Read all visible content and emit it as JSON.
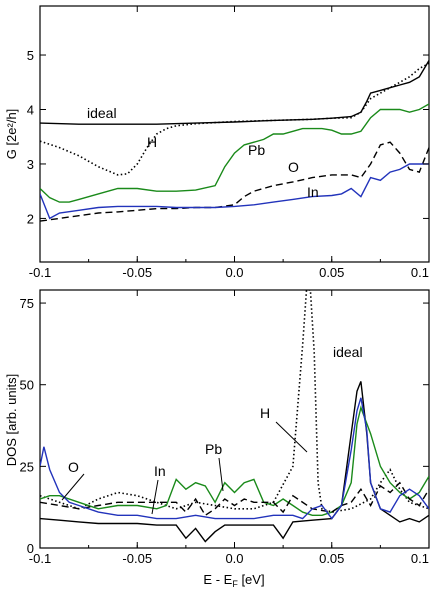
{
  "chart_data": [
    {
      "type": "line",
      "panel": "top",
      "ylabel": "G [2e²/h]",
      "xlim": [
        -0.1,
        0.1
      ],
      "ylim": [
        1.2,
        5.9
      ],
      "xticks": [
        -0.1,
        -0.05,
        0,
        0.05,
        0.1
      ],
      "xtick_labels": [
        "-0.1",
        "-0.05",
        "0.0",
        "0.05",
        "0.1"
      ],
      "yticks": [
        2,
        3,
        4,
        5
      ],
      "ytick_labels": [
        "2",
        "3",
        "4",
        "5"
      ],
      "series": [
        {
          "name": "ideal",
          "color": "#000000",
          "dash": "solid",
          "x": [
            -0.1,
            -0.08,
            -0.06,
            -0.04,
            -0.02,
            0.0,
            0.02,
            0.04,
            0.05,
            0.06,
            0.065,
            0.068,
            0.07,
            0.075,
            0.08,
            0.085,
            0.09,
            0.095,
            0.1
          ],
          "y": [
            3.75,
            3.73,
            3.73,
            3.73,
            3.75,
            3.77,
            3.8,
            3.82,
            3.84,
            3.87,
            3.95,
            4.15,
            4.3,
            4.35,
            4.4,
            4.45,
            4.5,
            4.6,
            4.9
          ]
        },
        {
          "name": "H",
          "color": "#000000",
          "dash": "dotted",
          "x": [
            -0.1,
            -0.09,
            -0.08,
            -0.07,
            -0.06,
            -0.055,
            -0.05,
            -0.045,
            -0.04,
            -0.035,
            -0.03,
            -0.02,
            -0.01,
            0.0,
            0.02,
            0.04,
            0.05,
            0.06,
            0.065,
            0.07,
            0.075,
            0.08,
            0.085,
            0.09,
            0.095,
            0.1
          ],
          "y": [
            3.42,
            3.3,
            3.15,
            2.95,
            2.8,
            2.82,
            3.0,
            3.3,
            3.55,
            3.65,
            3.7,
            3.74,
            3.76,
            3.78,
            3.8,
            3.82,
            3.84,
            3.85,
            3.95,
            4.2,
            4.3,
            4.4,
            4.5,
            4.6,
            4.75,
            4.85
          ]
        },
        {
          "name": "Pb",
          "color": "#1a8a1a",
          "dash": "solid",
          "x": [
            -0.1,
            -0.095,
            -0.09,
            -0.085,
            -0.08,
            -0.07,
            -0.06,
            -0.05,
            -0.04,
            -0.03,
            -0.02,
            -0.01,
            -0.005,
            0.0,
            0.005,
            0.01,
            0.015,
            0.02,
            0.025,
            0.03,
            0.035,
            0.04,
            0.045,
            0.05,
            0.055,
            0.06,
            0.065,
            0.07,
            0.075,
            0.08,
            0.085,
            0.09,
            0.095,
            0.1
          ],
          "y": [
            2.55,
            2.38,
            2.3,
            2.3,
            2.35,
            2.45,
            2.55,
            2.55,
            2.5,
            2.5,
            2.52,
            2.6,
            2.95,
            3.2,
            3.35,
            3.4,
            3.45,
            3.55,
            3.55,
            3.6,
            3.65,
            3.65,
            3.65,
            3.62,
            3.55,
            3.55,
            3.6,
            3.85,
            4.0,
            4.0,
            4.0,
            3.95,
            4.0,
            4.1
          ]
        },
        {
          "name": "O",
          "color": "#000000",
          "dash": "dashed",
          "x": [
            -0.1,
            -0.09,
            -0.08,
            -0.07,
            -0.06,
            -0.05,
            -0.04,
            -0.03,
            -0.02,
            -0.01,
            0.0,
            0.005,
            0.01,
            0.02,
            0.03,
            0.04,
            0.05,
            0.06,
            0.065,
            0.07,
            0.075,
            0.08,
            0.085,
            0.09,
            0.095,
            0.1
          ],
          "y": [
            1.95,
            2.0,
            2.05,
            2.1,
            2.12,
            2.15,
            2.18,
            2.18,
            2.2,
            2.2,
            2.25,
            2.4,
            2.5,
            2.6,
            2.67,
            2.75,
            2.8,
            2.8,
            2.75,
            3.0,
            3.35,
            3.4,
            3.2,
            2.9,
            2.85,
            3.3
          ]
        },
        {
          "name": "In",
          "color": "#2233bb",
          "dash": "solid",
          "x": [
            -0.1,
            -0.095,
            -0.09,
            -0.08,
            -0.07,
            -0.06,
            -0.05,
            -0.04,
            -0.03,
            -0.02,
            -0.01,
            0.0,
            0.01,
            0.02,
            0.03,
            0.04,
            0.05,
            0.055,
            0.06,
            0.065,
            0.07,
            0.075,
            0.08,
            0.085,
            0.09,
            0.095,
            0.1
          ],
          "y": [
            2.45,
            2.0,
            2.1,
            2.15,
            2.2,
            2.22,
            2.22,
            2.22,
            2.2,
            2.2,
            2.2,
            2.22,
            2.25,
            2.3,
            2.35,
            2.4,
            2.42,
            2.45,
            2.55,
            2.4,
            2.75,
            2.7,
            2.85,
            2.9,
            3.0,
            3.0,
            3.0
          ]
        }
      ],
      "annotations": [
        "ideal",
        "H",
        "Pb",
        "O",
        "In"
      ]
    },
    {
      "type": "line",
      "panel": "bottom",
      "xlabel": "E - E",
      "xlabel_sub": "F",
      "xlabel_unit": " [eV]",
      "ylabel": "DOS [arb. units]",
      "xlim": [
        -0.1,
        0.1
      ],
      "ylim": [
        0,
        79
      ],
      "xticks": [
        -0.1,
        -0.05,
        0,
        0.05,
        0.1
      ],
      "xtick_labels": [
        "-0.1",
        "-0.05",
        "0.0",
        "0.05",
        "0.1"
      ],
      "yticks": [
        0,
        25,
        50,
        75
      ],
      "ytick_labels": [
        "0",
        "25",
        "50",
        "75"
      ],
      "series": [
        {
          "name": "ideal",
          "color": "#000000",
          "dash": "solid",
          "x": [
            -0.1,
            -0.09,
            -0.08,
            -0.07,
            -0.06,
            -0.05,
            -0.04,
            -0.03,
            -0.025,
            -0.02,
            -0.015,
            -0.01,
            -0.005,
            0.0,
            0.005,
            0.01,
            0.02,
            0.025,
            0.03,
            0.04,
            0.05,
            0.055,
            0.06,
            0.063,
            0.065,
            0.068,
            0.07,
            0.075,
            0.08,
            0.085,
            0.09,
            0.095,
            0.1
          ],
          "y": [
            9,
            8.5,
            8,
            7.5,
            7.5,
            7.5,
            7,
            7,
            3,
            6,
            2,
            5,
            7,
            7,
            7,
            7,
            7,
            3,
            8,
            8.5,
            9,
            13,
            35,
            48,
            51,
            35,
            20,
            12,
            10,
            8,
            9,
            8,
            10
          ]
        },
        {
          "name": "H",
          "color": "#000000",
          "dash": "dotted",
          "x": [
            -0.1,
            -0.09,
            -0.08,
            -0.07,
            -0.06,
            -0.05,
            -0.04,
            -0.03,
            -0.02,
            -0.01,
            0.0,
            0.01,
            0.02,
            0.03,
            0.035,
            0.037,
            0.039,
            0.041,
            0.043,
            0.045,
            0.05,
            0.06,
            0.07,
            0.075,
            0.08,
            0.085,
            0.09,
            0.1
          ],
          "y": [
            16,
            14,
            12,
            15,
            17,
            16,
            14,
            12,
            14,
            13,
            12,
            12,
            14,
            25,
            62,
            79,
            79,
            60,
            20,
            12,
            11,
            12,
            15,
            20,
            24,
            18,
            14,
            12
          ]
        },
        {
          "name": "Pb",
          "color": "#1a8a1a",
          "dash": "solid",
          "x": [
            -0.1,
            -0.095,
            -0.09,
            -0.08,
            -0.07,
            -0.06,
            -0.05,
            -0.04,
            -0.035,
            -0.03,
            -0.025,
            -0.02,
            -0.015,
            -0.01,
            -0.005,
            0.0,
            0.005,
            0.01,
            0.015,
            0.02,
            0.025,
            0.03,
            0.035,
            0.04,
            0.045,
            0.05,
            0.055,
            0.06,
            0.063,
            0.065,
            0.07,
            0.075,
            0.08,
            0.085,
            0.09,
            0.095,
            0.1
          ],
          "y": [
            15,
            16,
            16,
            14,
            12,
            13,
            13,
            12,
            13,
            21,
            18,
            20,
            19,
            14,
            20,
            17,
            20,
            21,
            14,
            13,
            15,
            13,
            11,
            10,
            10,
            11,
            13,
            20,
            38,
            43,
            35,
            25,
            20,
            17,
            15,
            17,
            22
          ]
        },
        {
          "name": "O",
          "color": "#000000",
          "dash": "dashed",
          "x": [
            -0.1,
            -0.09,
            -0.08,
            -0.07,
            -0.06,
            -0.05,
            -0.04,
            -0.03,
            -0.025,
            -0.02,
            -0.015,
            -0.01,
            -0.005,
            0.0,
            0.005,
            0.01,
            0.02,
            0.025,
            0.03,
            0.04,
            0.05,
            0.055,
            0.06,
            0.065,
            0.07,
            0.075,
            0.08,
            0.085,
            0.09,
            0.095,
            0.1
          ],
          "y": [
            14,
            13,
            12,
            13,
            14,
            14,
            14,
            14,
            11,
            15,
            10,
            12,
            15,
            13,
            15,
            14,
            14,
            11,
            16,
            12,
            11,
            13,
            14,
            18,
            13,
            19,
            17,
            20,
            15,
            13,
            18
          ]
        },
        {
          "name": "In",
          "color": "#2233bb",
          "dash": "solid",
          "x": [
            -0.1,
            -0.098,
            -0.095,
            -0.09,
            -0.085,
            -0.08,
            -0.07,
            -0.06,
            -0.05,
            -0.04,
            -0.03,
            -0.02,
            -0.01,
            0.0,
            0.01,
            0.02,
            0.03,
            0.035,
            0.04,
            0.045,
            0.05,
            0.055,
            0.06,
            0.063,
            0.065,
            0.068,
            0.07,
            0.075,
            0.08,
            0.085,
            0.09,
            0.095,
            0.1
          ],
          "y": [
            25,
            31,
            24,
            17,
            14,
            13,
            11,
            10,
            10,
            9,
            9,
            10,
            9,
            9,
            9,
            10,
            10,
            9,
            12,
            13,
            9,
            13,
            30,
            42,
            46,
            36,
            20,
            12,
            11,
            16,
            18,
            16,
            12
          ]
        }
      ],
      "annotations": [
        "O",
        "In",
        "Pb",
        "H",
        "ideal"
      ]
    }
  ]
}
